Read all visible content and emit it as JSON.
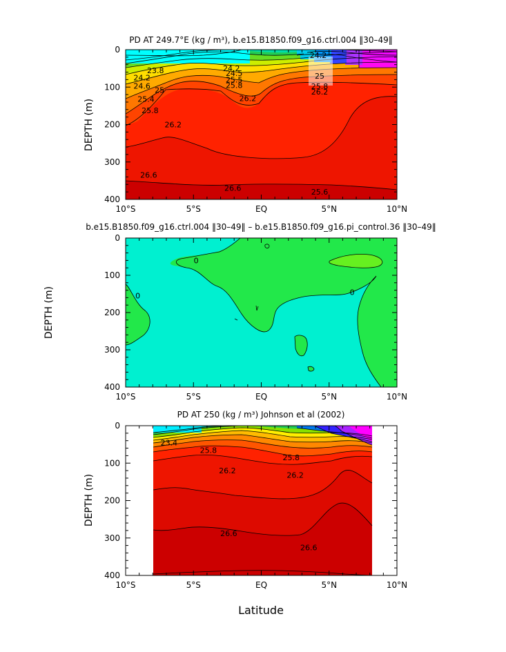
{
  "chart_data": [
    {
      "type": "contour",
      "title": "PD AT 249.7°E (kg / m³), b.e15.B1850.f09_g16.ctrl.004 ‖30–49‖",
      "xlabel": "",
      "ylabel": "DEPTH (m)",
      "xlim": [
        -10,
        10
      ],
      "ylim": [
        400,
        0
      ],
      "x_ticks": [
        "10°S",
        "5°S",
        "EQ",
        "5°N",
        "10°N"
      ],
      "y_ticks": [
        "0",
        "100",
        "200",
        "300",
        "400"
      ],
      "contour_labels": [
        {
          "text": "23.8",
          "lat": -7.8,
          "depth": 55
        },
        {
          "text": "24.2",
          "lat": -8.8,
          "depth": 75
        },
        {
          "text": "24.6",
          "lat": -8.8,
          "depth": 97
        },
        {
          "text": "25",
          "lat": -7.5,
          "depth": 108
        },
        {
          "text": "25.4",
          "lat": -8.5,
          "depth": 132
        },
        {
          "text": "25.8",
          "lat": -8.2,
          "depth": 162
        },
        {
          "text": "26.2",
          "lat": -6.5,
          "depth": 200
        },
        {
          "text": "24.2",
          "lat": -2.2,
          "depth": 50
        },
        {
          "text": "24.5",
          "lat": -2,
          "depth": 63
        },
        {
          "text": "25.5",
          "lat": -2,
          "depth": 80
        },
        {
          "text": "25.8",
          "lat": -2,
          "depth": 95
        },
        {
          "text": "26.2",
          "lat": -1,
          "depth": 130
        },
        {
          "text": "24.2",
          "lat": 4.2,
          "depth": 15
        },
        {
          "text": "25",
          "lat": 4.3,
          "depth": 70
        },
        {
          "text": "25.8",
          "lat": 4.3,
          "depth": 98
        },
        {
          "text": "26.2",
          "lat": 4.3,
          "depth": 112
        },
        {
          "text": "26.6",
          "lat": -8.3,
          "depth": 335
        },
        {
          "text": "26.6",
          "lat": -2.1,
          "depth": 370
        },
        {
          "text": "25.6",
          "lat": 4.3,
          "depth": 380
        }
      ]
    },
    {
      "type": "contour",
      "title": "b.e15.B1850.f09_g16.ctrl.004 ‖30–49‖ – b.e15.B1850.f09_g16.pi_control.36 ‖30–49‖",
      "xlabel": "",
      "ylabel": "DEPTH (m)",
      "xlim": [
        -10,
        10
      ],
      "ylim": [
        400,
        0
      ],
      "x_ticks": [
        "10°S",
        "5°S",
        "EQ",
        "5°N",
        "10°N"
      ],
      "y_ticks": [
        "0",
        "100",
        "200",
        "300",
        "400"
      ],
      "contour_labels": [
        {
          "text": "0",
          "lat": -4.8,
          "depth": 60
        },
        {
          "text": "0",
          "lat": -9.1,
          "depth": 155
        },
        {
          "text": "0",
          "lat": 6.7,
          "depth": 145
        }
      ]
    },
    {
      "type": "contour",
      "title": "PD AT 250 (kg / m³) Johnson et al (2002)",
      "xlabel": "Latitude",
      "ylabel": "DEPTH (m)",
      "xlim": [
        -10,
        10
      ],
      "ylim": [
        400,
        0
      ],
      "x_ticks": [
        "10°S",
        "5°S",
        "EQ",
        "5°N",
        "10°N"
      ],
      "y_ticks": [
        "0",
        "100",
        "200",
        "300",
        "400"
      ],
      "contour_labels": [
        {
          "text": "23.4",
          "lat": -6.8,
          "depth": 45
        },
        {
          "text": "25.8",
          "lat": -3.9,
          "depth": 65
        },
        {
          "text": "26.2",
          "lat": -2.5,
          "depth": 120
        },
        {
          "text": "26.2",
          "lat": 2.5,
          "depth": 132
        },
        {
          "text": "25.8",
          "lat": 2.2,
          "depth": 85
        },
        {
          "text": "26.6",
          "lat": -2.4,
          "depth": 288
        },
        {
          "text": "26.6",
          "lat": 3.5,
          "depth": 325
        }
      ]
    }
  ]
}
